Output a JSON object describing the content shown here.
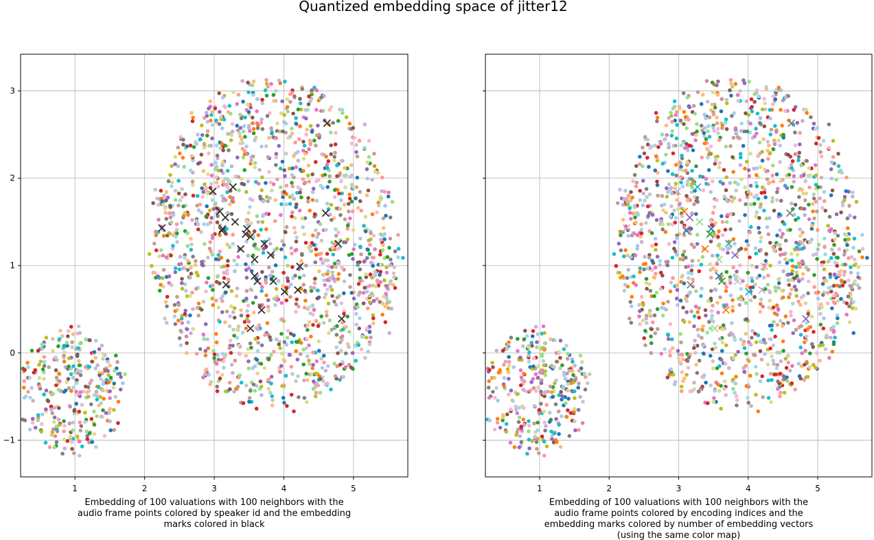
{
  "figure": {
    "suptitle": "Quantized embedding space of jitter12"
  },
  "palette": [
    "#1f77b4",
    "#aec7e8",
    "#ff7f0e",
    "#ffbb78",
    "#2ca02c",
    "#98df8a",
    "#d62728",
    "#ff9896",
    "#9467bd",
    "#c5b0d5",
    "#8c564b",
    "#c49c94",
    "#e377c2",
    "#f7b6d2",
    "#7f7f7f",
    "#c7c7c7",
    "#bcbd22",
    "#dbdb8d",
    "#17becf",
    "#9edae5"
  ],
  "chart_data": [
    {
      "type": "scatter",
      "xlabel": [
        "Embedding of 100 valuations with 100 neighbors with the",
        "audio frame points colored by speaker id and the embedding",
        "marks colored in black"
      ],
      "xlim": [
        0.22,
        5.78
      ],
      "ylim": [
        -1.42,
        3.42
      ],
      "xticks": [
        1,
        2,
        3,
        4,
        5
      ],
      "yticks": [
        -1,
        0,
        1,
        2,
        3
      ],
      "grid": true,
      "point_coloring": "speaker id",
      "marker_color": "#333333",
      "clusters": [
        {
          "cx": 0.95,
          "cy": -0.45,
          "rx": 0.75,
          "ry": 0.72,
          "n": 330
        },
        {
          "cx": 3.85,
          "cy": 1.25,
          "rx": 1.75,
          "ry": 1.9,
          "n": 1500
        },
        {
          "cx": 5.35,
          "cy": 0.85,
          "rx": 0.4,
          "ry": 0.6,
          "n": 60
        }
      ],
      "embedding_marks": [
        [
          4.62,
          2.63
        ],
        [
          2.98,
          1.85
        ],
        [
          3.27,
          1.9
        ],
        [
          3.08,
          1.62
        ],
        [
          3.16,
          1.55
        ],
        [
          3.3,
          1.5
        ],
        [
          3.12,
          1.42
        ],
        [
          3.47,
          1.42
        ],
        [
          3.45,
          1.36
        ],
        [
          3.52,
          1.33
        ],
        [
          4.6,
          1.6
        ],
        [
          4.78,
          1.25
        ],
        [
          3.72,
          1.25
        ],
        [
          3.38,
          1.19
        ],
        [
          3.81,
          1.12
        ],
        [
          3.58,
          1.07
        ],
        [
          4.23,
          0.99
        ],
        [
          3.58,
          0.88
        ],
        [
          3.62,
          0.82
        ],
        [
          3.85,
          0.82
        ],
        [
          3.17,
          0.78
        ],
        [
          4.2,
          0.72
        ],
        [
          4.01,
          0.7
        ],
        [
          3.68,
          0.49
        ],
        [
          4.83,
          0.39
        ],
        [
          3.52,
          0.28
        ],
        [
          2.25,
          1.43
        ],
        [
          3.11,
          1.4
        ]
      ]
    },
    {
      "type": "scatter",
      "xlabel": [
        "Embedding of 100 valuations with 100 neighbors with the",
        "audio frame points colored by encoding indices and the",
        "embedding marks colored by number of embedding vectors",
        "(using the same color map)"
      ],
      "xlim": [
        0.22,
        5.78
      ],
      "ylim": [
        -1.42,
        3.42
      ],
      "xticks": [
        1,
        2,
        3,
        4,
        5
      ],
      "yticks": [
        -1,
        0,
        1,
        2,
        3
      ],
      "grid": true,
      "point_coloring": "encoding indices",
      "marker_colors": [
        "#7f7f7f",
        "#c5b0d5",
        "#17becf",
        "#ff7f0e",
        "#9467bd",
        "#98df8a",
        "#ff9896",
        "#1f77b4",
        "#2ca02c",
        "#c7c7c7"
      ]
    }
  ]
}
